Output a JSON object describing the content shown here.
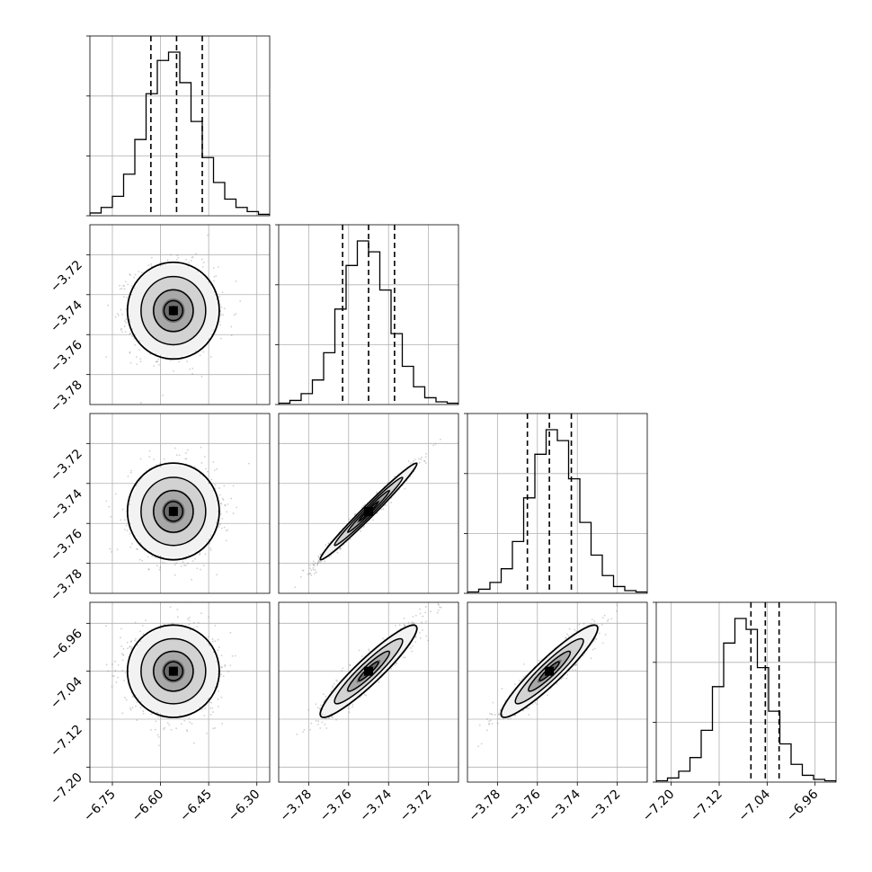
{
  "chart_data": {
    "type": "corner",
    "parameters": [
      {
        "range": [
          -6.82,
          -6.26
        ],
        "ticks": [
          -6.75,
          -6.6,
          -6.45,
          -6.3
        ],
        "tick_labels": [
          "−6.75",
          "−6.60",
          "−6.45",
          "−6.30"
        ],
        "hist": {
          "counts": [
            2,
            6,
            14,
            30,
            55,
            88,
            112,
            118,
            96,
            68,
            42,
            24,
            12,
            6,
            3,
            1
          ],
          "quantiles": [
            -6.63,
            -6.55,
            -6.47
          ]
        }
      },
      {
        "range": [
          -3.795,
          -3.705
        ],
        "ticks": [
          -3.78,
          -3.76,
          -3.74,
          -3.72
        ],
        "tick_labels": [
          "−3.78",
          "−3.76",
          "−3.74",
          "−3.72"
        ],
        "hist": {
          "counts": [
            1,
            3,
            8,
            18,
            38,
            70,
            102,
            120,
            112,
            84,
            52,
            28,
            13,
            5,
            2,
            1
          ],
          "quantiles": [
            -3.763,
            -3.75,
            -3.737
          ]
        }
      },
      {
        "range": [
          -3.795,
          -3.705
        ],
        "ticks": [
          -3.78,
          -3.76,
          -3.74,
          -3.72
        ],
        "tick_labels": [
          "−3.78",
          "−3.76",
          "−3.74",
          "−3.72"
        ],
        "hist": {
          "counts": [
            1,
            3,
            8,
            18,
            38,
            70,
            102,
            120,
            112,
            84,
            52,
            28,
            13,
            5,
            2,
            1
          ],
          "quantiles": [
            -3.765,
            -3.754,
            -3.743
          ]
        }
      },
      {
        "range": [
          -7.225,
          -6.925
        ],
        "ticks": [
          -7.2,
          -7.12,
          -7.04,
          -6.96
        ],
        "tick_labels": [
          "−7.20",
          "−7.12",
          "−7.04",
          "−6.96"
        ],
        "hist": {
          "counts": [
            1,
            3,
            8,
            18,
            38,
            70,
            102,
            120,
            112,
            84,
            52,
            28,
            13,
            5,
            2,
            1
          ],
          "quantiles": [
            -7.067,
            -7.043,
            -7.02
          ]
        }
      }
    ],
    "pairs": [
      {
        "row": 1,
        "col": 0,
        "center": [
          -6.56,
          -3.748
        ],
        "sd": [
          0.065,
          0.011
        ],
        "rho": 0.0
      },
      {
        "row": 2,
        "col": 0,
        "center": [
          -6.56,
          -3.754
        ],
        "sd": [
          0.065,
          0.011
        ],
        "rho": 0.0
      },
      {
        "row": 2,
        "col": 1,
        "center": [
          -3.75,
          -3.754
        ],
        "sd": [
          0.011,
          0.011
        ],
        "rho": 0.985
      },
      {
        "row": 3,
        "col": 0,
        "center": [
          -6.56,
          -7.04
        ],
        "sd": [
          0.065,
          0.035
        ],
        "rho": 0.0
      },
      {
        "row": 3,
        "col": 1,
        "center": [
          -3.75,
          -7.04
        ],
        "sd": [
          0.011,
          0.035
        ],
        "rho": 0.93
      },
      {
        "row": 3,
        "col": 2,
        "center": [
          -3.754,
          -7.04
        ],
        "sd": [
          0.011,
          0.035
        ],
        "rho": 0.93
      }
    ],
    "grid": true
  },
  "colors": {
    "contour": "#000000",
    "scatter": "#777777",
    "grid": "#b0b0b0",
    "hist_line": "#000000"
  }
}
